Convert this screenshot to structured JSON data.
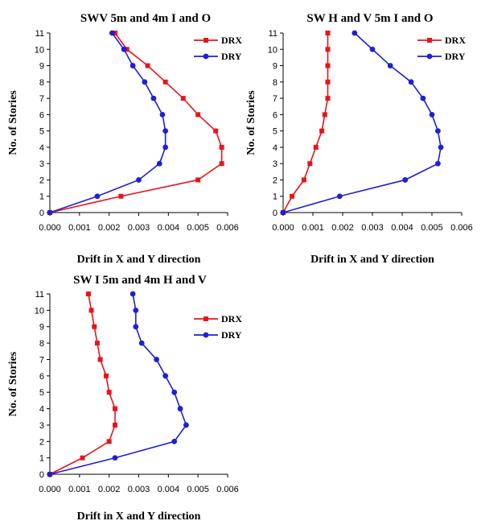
{
  "colors": {
    "drx": "#e8141c",
    "dry": "#1f1fd6",
    "axis": "#000000"
  },
  "chart_data": [
    {
      "type": "line",
      "title": "SWV 5m and 4m I and O",
      "xlabel": "Drift in X and Y direction",
      "ylabel": "No. of Stories",
      "xlim": [
        0,
        0.006
      ],
      "ylim": [
        0,
        11
      ],
      "xticks": [
        "0.000",
        "0.001",
        "0.002",
        "0.003",
        "0.004",
        "0.005",
        "0.006"
      ],
      "yticks": [
        "0",
        "1",
        "2",
        "3",
        "4",
        "5",
        "6",
        "7",
        "8",
        "9",
        "10",
        "11"
      ],
      "legend_position": "top-right",
      "series": [
        {
          "name": "DRX",
          "marker": "square",
          "points": [
            [
              0,
              0
            ],
            [
              0.0024,
              1
            ],
            [
              0.005,
              2
            ],
            [
              0.0058,
              3
            ],
            [
              0.0058,
              4
            ],
            [
              0.0056,
              5
            ],
            [
              0.005,
              6
            ],
            [
              0.0045,
              7
            ],
            [
              0.0039,
              8
            ],
            [
              0.0033,
              9
            ],
            [
              0.0026,
              10
            ],
            [
              0.0022,
              11
            ]
          ]
        },
        {
          "name": "DRY",
          "marker": "circle",
          "points": [
            [
              0,
              0
            ],
            [
              0.0016,
              1
            ],
            [
              0.003,
              2
            ],
            [
              0.0037,
              3
            ],
            [
              0.0039,
              4
            ],
            [
              0.0039,
              5
            ],
            [
              0.0038,
              6
            ],
            [
              0.0035,
              7
            ],
            [
              0.0032,
              8
            ],
            [
              0.0028,
              9
            ],
            [
              0.0025,
              10
            ],
            [
              0.0021,
              11
            ]
          ]
        }
      ]
    },
    {
      "type": "line",
      "title": "SW H and V 5m  I and O",
      "xlabel": "Drift in X and Y direction",
      "ylabel": "No. of Stories",
      "xlim": [
        0,
        0.006
      ],
      "ylim": [
        0,
        11
      ],
      "xticks": [
        "0.000",
        "0.001",
        "0.002",
        "0.003",
        "0.004",
        "0.005",
        "0.006"
      ],
      "yticks": [
        "0",
        "1",
        "2",
        "3",
        "4",
        "5",
        "6",
        "7",
        "8",
        "9",
        "10",
        "11"
      ],
      "legend_position": "top-right",
      "series": [
        {
          "name": "DRX",
          "marker": "square",
          "points": [
            [
              0,
              0
            ],
            [
              0.0003,
              1
            ],
            [
              0.0007,
              2
            ],
            [
              0.0009,
              3
            ],
            [
              0.0011,
              4
            ],
            [
              0.0013,
              5
            ],
            [
              0.0014,
              6
            ],
            [
              0.0015,
              7
            ],
            [
              0.0015,
              8
            ],
            [
              0.0015,
              9
            ],
            [
              0.0015,
              10
            ],
            [
              0.0015,
              11
            ]
          ]
        },
        {
          "name": "DRY",
          "marker": "circle",
          "points": [
            [
              0,
              0
            ],
            [
              0.0019,
              1
            ],
            [
              0.0041,
              2
            ],
            [
              0.0052,
              3
            ],
            [
              0.0053,
              4
            ],
            [
              0.0052,
              5
            ],
            [
              0.005,
              6
            ],
            [
              0.0047,
              7
            ],
            [
              0.0043,
              8
            ],
            [
              0.0036,
              9
            ],
            [
              0.003,
              10
            ],
            [
              0.0024,
              11
            ]
          ]
        }
      ]
    },
    {
      "type": "line",
      "title": "SW I 5m and 4m  H and V",
      "xlabel": "Drift in X and Y direction",
      "ylabel": "No. of Stories",
      "xlim": [
        0,
        0.006
      ],
      "ylim": [
        0,
        11
      ],
      "xticks": [
        "0.000",
        "0.001",
        "0.002",
        "0.003",
        "0.004",
        "0.005",
        "0.006"
      ],
      "yticks": [
        "0",
        "1",
        "2",
        "3",
        "4",
        "5",
        "6",
        "7",
        "8",
        "9",
        "10",
        "11"
      ],
      "legend_position": "top-right",
      "series": [
        {
          "name": "DRX",
          "marker": "square",
          "points": [
            [
              0,
              0
            ],
            [
              0.0011,
              1
            ],
            [
              0.002,
              2
            ],
            [
              0.0022,
              3
            ],
            [
              0.0022,
              4
            ],
            [
              0.002,
              5
            ],
            [
              0.0019,
              6
            ],
            [
              0.0017,
              7
            ],
            [
              0.0016,
              8
            ],
            [
              0.0015,
              9
            ],
            [
              0.0014,
              10
            ],
            [
              0.0013,
              11
            ]
          ]
        },
        {
          "name": "DRY",
          "marker": "circle",
          "points": [
            [
              0,
              0
            ],
            [
              0.0022,
              1
            ],
            [
              0.0042,
              2
            ],
            [
              0.0046,
              3
            ],
            [
              0.0044,
              4
            ],
            [
              0.0042,
              5
            ],
            [
              0.0039,
              6
            ],
            [
              0.0036,
              7
            ],
            [
              0.0031,
              8
            ],
            [
              0.0029,
              9
            ],
            [
              0.0029,
              10
            ],
            [
              0.0028,
              11
            ]
          ]
        }
      ]
    }
  ]
}
